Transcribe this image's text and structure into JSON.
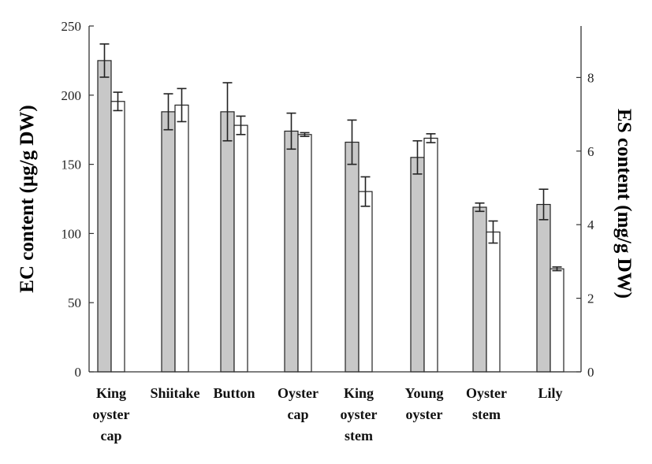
{
  "chart_data": {
    "type": "bar",
    "categories": [
      [
        "King",
        "oyster",
        "cap"
      ],
      [
        "Shiitake"
      ],
      [
        "Button"
      ],
      [
        "Oyster",
        "cap"
      ],
      [
        "King",
        "oyster",
        "stem"
      ],
      [
        "Young",
        "oyster"
      ],
      [
        "Oyster",
        "stem"
      ],
      [
        "Lily"
      ]
    ],
    "ylabel_left": "EC content (μg/g DW)",
    "ylabel_right": "ES content (mg/g DW)",
    "ylim_left": [
      0,
      250
    ],
    "yticks_left": [
      0,
      50,
      100,
      150,
      200,
      250
    ],
    "ylim_right": [
      0,
      9.4
    ],
    "yticks_right": [
      0,
      2,
      4,
      6,
      8
    ],
    "grid": false,
    "legend": "none",
    "series": [
      {
        "axis": "left",
        "color": "#c8c8c8",
        "values": [
          225,
          188,
          188,
          174,
          166,
          155,
          119,
          121
        ],
        "errors": [
          12,
          13,
          21,
          13,
          16,
          12,
          3,
          11
        ]
      },
      {
        "axis": "right",
        "color": "#ffffff",
        "values": [
          7.35,
          7.25,
          6.7,
          6.45,
          4.9,
          6.35,
          3.8,
          2.8
        ],
        "errors": [
          0.25,
          0.45,
          0.25,
          0.05,
          0.4,
          0.12,
          0.3,
          0.05
        ]
      }
    ]
  }
}
